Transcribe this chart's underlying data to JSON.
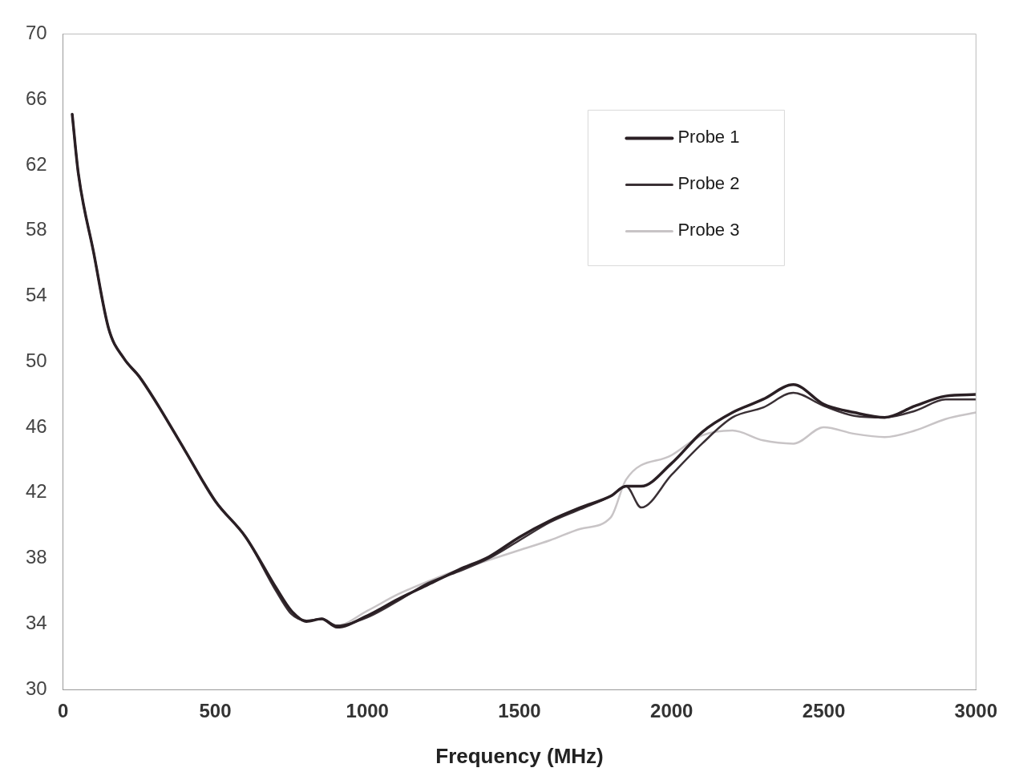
{
  "chart_data": {
    "type": "line",
    "xlabel": "Frequency (MHz)",
    "xlim": [
      0,
      3000
    ],
    "xticks": [
      0,
      500,
      1000,
      1500,
      2000,
      2500,
      3000
    ],
    "ylim": [
      30,
      70
    ],
    "yticks": [
      30,
      34,
      38,
      42,
      46,
      50,
      54,
      58,
      62,
      66,
      70
    ],
    "legend": "top right",
    "marker": "none",
    "series": [
      {
        "name": "Probe 1",
        "color": "#2a1f24",
        "x": [
          30,
          50,
          100,
          150,
          200,
          250,
          300,
          400,
          500,
          600,
          700,
          750,
          800,
          850,
          900,
          1000,
          1100,
          1200,
          1300,
          1400,
          1500,
          1600,
          1700,
          1800,
          1850,
          1900,
          2000,
          2100,
          2200,
          2300,
          2400,
          2500,
          2600,
          2700,
          2800,
          2900,
          3000
        ],
        "values": [
          65.1,
          61.5,
          56.7,
          52.0,
          50.2,
          49.1,
          47.7,
          44.6,
          41.5,
          39.3,
          36.2,
          34.8,
          34.15,
          34.3,
          33.8,
          34.5,
          35.5,
          36.4,
          37.3,
          38.1,
          39.3,
          40.3,
          41.1,
          41.8,
          42.4,
          42.4,
          43.8,
          45.7,
          46.9,
          47.7,
          48.6,
          47.4,
          46.9,
          46.6,
          47.3,
          47.9,
          48.0
        ]
      },
      {
        "name": "Probe 2",
        "color": "#3a3035",
        "x": [
          30,
          50,
          100,
          150,
          200,
          250,
          300,
          400,
          500,
          600,
          700,
          750,
          800,
          850,
          900,
          1000,
          1100,
          1200,
          1300,
          1400,
          1500,
          1600,
          1700,
          1800,
          1850,
          1900,
          2000,
          2100,
          2200,
          2300,
          2400,
          2500,
          2600,
          2700,
          2800,
          2900,
          3000
        ],
        "values": [
          65.1,
          61.5,
          56.7,
          52.0,
          50.2,
          49.1,
          47.7,
          44.6,
          41.5,
          39.3,
          36.0,
          34.6,
          34.2,
          34.3,
          33.9,
          34.4,
          35.4,
          36.5,
          37.2,
          38.0,
          39.1,
          40.2,
          41.0,
          41.8,
          42.4,
          41.1,
          43.1,
          45.0,
          46.6,
          47.2,
          48.1,
          47.3,
          46.7,
          46.6,
          47.0,
          47.7,
          47.7
        ]
      },
      {
        "name": "Probe 3",
        "color": "#c8c4c6",
        "x": [
          30,
          50,
          100,
          150,
          200,
          250,
          300,
          400,
          500,
          600,
          700,
          750,
          800,
          850,
          900,
          1000,
          1100,
          1200,
          1300,
          1400,
          1500,
          1600,
          1700,
          1800,
          1850,
          2000,
          2100,
          2200,
          2300,
          2400,
          2500,
          2600,
          2700,
          2800,
          2900,
          3000
        ],
        "values": [
          65.1,
          61.5,
          56.7,
          52.0,
          50.2,
          49.1,
          47.7,
          44.6,
          41.5,
          39.3,
          36.1,
          34.7,
          34.2,
          34.3,
          33.9,
          34.8,
          35.8,
          36.6,
          37.3,
          37.9,
          38.5,
          39.1,
          39.8,
          40.5,
          42.8,
          44.3,
          45.5,
          45.8,
          45.2,
          45.0,
          46.0,
          45.6,
          45.4,
          45.8,
          46.5,
          46.9
        ]
      }
    ]
  }
}
